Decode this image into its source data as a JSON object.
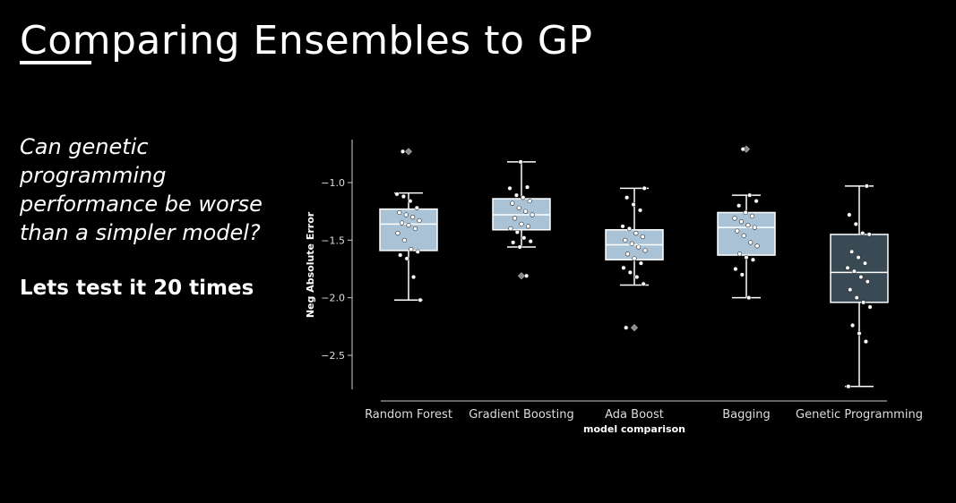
{
  "slide": {
    "title": "Comparing Ensembles to GP",
    "question": "Can genetic programming performance be worse than a simpler model?",
    "answer": "Lets test it 20 times"
  },
  "colors": {
    "background": "#000000",
    "box_light": "#a9c2d6",
    "box_dark": "#3a4a55",
    "line": "#ffffff",
    "point": "#ffffff"
  },
  "chart_data": {
    "type": "box",
    "title": "",
    "xlabel": "model comparison",
    "ylabel": "Neg Absolute Error",
    "ylim": [
      -2.8,
      -0.6
    ],
    "yticks": [
      -1.0,
      -1.5,
      -2.0,
      -2.5
    ],
    "ytick_labels": [
      "−1.0",
      "−1.5",
      "−2.0",
      "−2.5"
    ],
    "grid": false,
    "categories": [
      "Random Forest",
      "Gradient Boosting",
      "Ada Boost",
      "Bagging",
      "Genetic Programming"
    ],
    "boxes": [
      {
        "name": "Random Forest",
        "q1": -1.59,
        "median": -1.36,
        "q3": -1.23,
        "whisker_low": -2.02,
        "whisker_high": -1.09,
        "outliers": [
          -0.73
        ],
        "color": "#a9c2d6",
        "points": [
          -1.1,
          -1.12,
          -1.16,
          -1.22,
          -1.26,
          -1.28,
          -1.3,
          -1.33,
          -1.35,
          -1.37,
          -1.4,
          -1.44,
          -1.5,
          -1.58,
          -1.6,
          -1.63,
          -1.66,
          -1.82,
          -2.02,
          -0.73
        ]
      },
      {
        "name": "Gradient Boosting",
        "q1": -1.41,
        "median": -1.28,
        "q3": -1.14,
        "whisker_low": -1.56,
        "whisker_high": -0.82,
        "outliers": [
          -1.81
        ],
        "color": "#a9c2d6",
        "points": [
          -0.82,
          -1.04,
          -1.05,
          -1.11,
          -1.13,
          -1.16,
          -1.18,
          -1.22,
          -1.25,
          -1.28,
          -1.31,
          -1.36,
          -1.38,
          -1.4,
          -1.43,
          -1.48,
          -1.51,
          -1.52,
          -1.56,
          -1.81
        ]
      },
      {
        "name": "Ada Boost",
        "q1": -1.67,
        "median": -1.54,
        "q3": -1.41,
        "whisker_low": -1.89,
        "whisker_high": -1.05,
        "outliers": [
          -2.26
        ],
        "color": "#a9c2d6",
        "points": [
          -1.05,
          -1.13,
          -1.19,
          -1.24,
          -1.38,
          -1.4,
          -1.44,
          -1.47,
          -1.5,
          -1.53,
          -1.56,
          -1.59,
          -1.62,
          -1.66,
          -1.7,
          -1.74,
          -1.78,
          -1.82,
          -1.88,
          -2.26
        ]
      },
      {
        "name": "Bagging",
        "q1": -1.63,
        "median": -1.39,
        "q3": -1.26,
        "whisker_low": -2.0,
        "whisker_high": -1.11,
        "outliers": [
          -0.71
        ],
        "color": "#a9c2d6",
        "points": [
          -0.71,
          -1.11,
          -1.16,
          -1.2,
          -1.26,
          -1.29,
          -1.31,
          -1.34,
          -1.37,
          -1.39,
          -1.42,
          -1.46,
          -1.52,
          -1.55,
          -1.62,
          -1.65,
          -1.67,
          -1.75,
          -1.8,
          -2.0
        ]
      },
      {
        "name": "Genetic Programming",
        "q1": -2.04,
        "median": -1.78,
        "q3": -1.45,
        "whisker_low": -2.77,
        "whisker_high": -1.03,
        "outliers": [],
        "color": "#3a4a55",
        "points": [
          -1.03,
          -1.28,
          -1.36,
          -1.44,
          -1.45,
          -1.6,
          -1.65,
          -1.7,
          -1.74,
          -1.77,
          -1.82,
          -1.86,
          -1.93,
          -2.0,
          -2.04,
          -2.08,
          -2.24,
          -2.31,
          -2.38,
          -2.77
        ]
      }
    ]
  }
}
